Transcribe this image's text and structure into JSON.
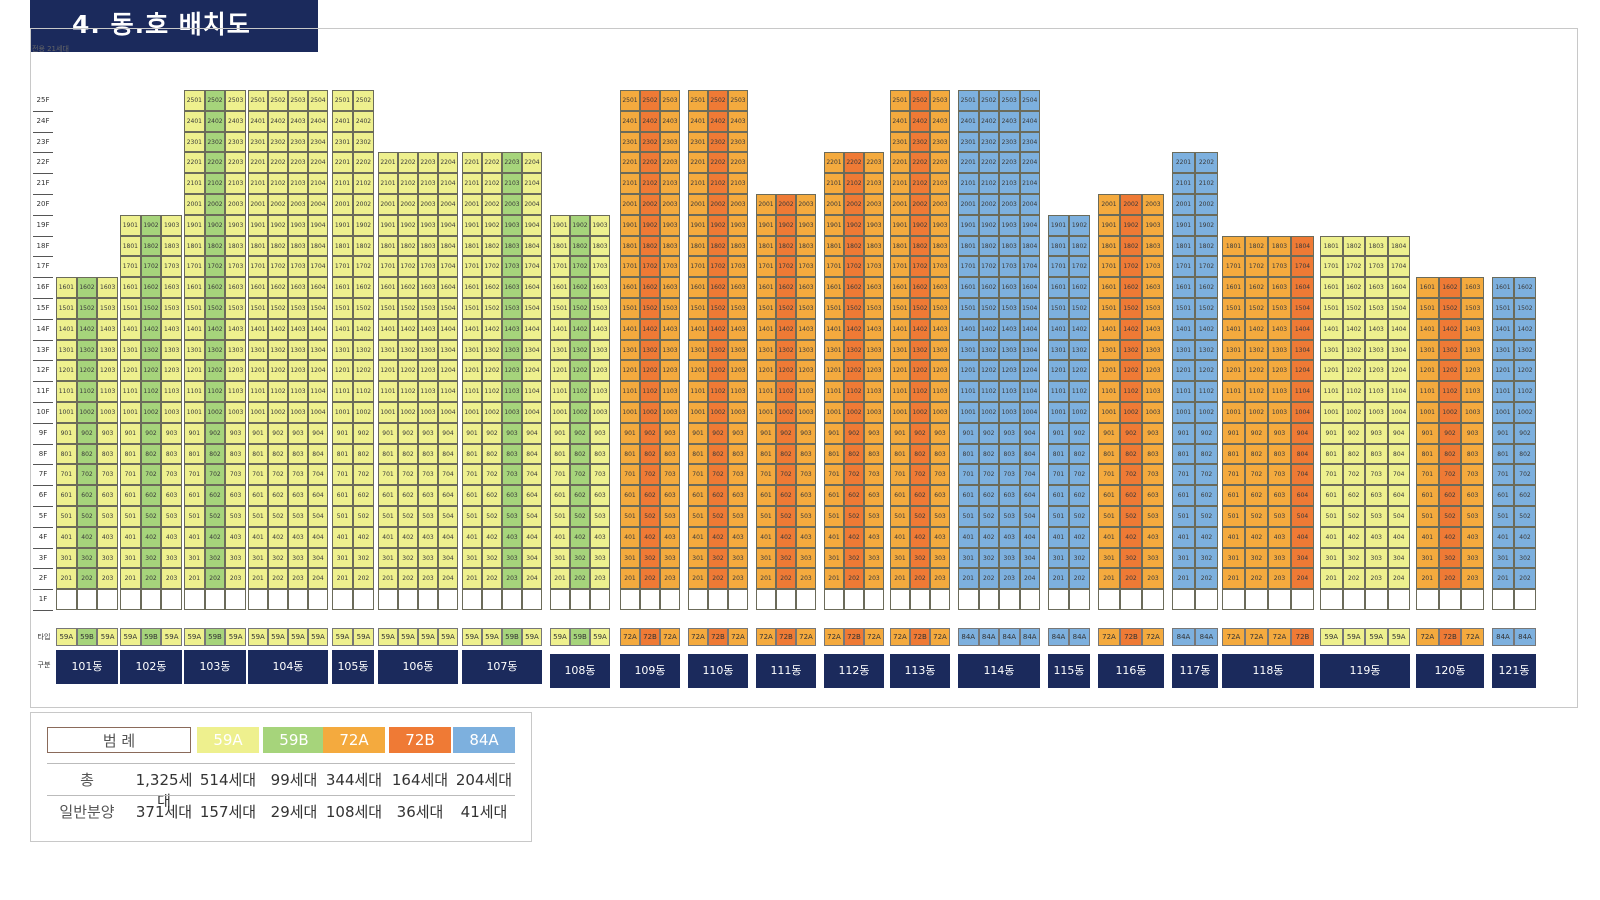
{
  "title": "4. 동.호 배치도",
  "caption": "전용 21세대",
  "colors": {
    "59A": "#eef08e",
    "59B": "#a6d47b",
    "72A": "#f4aa3e",
    "72B": "#ef7a35",
    "84A": "#7db0de"
  },
  "floors": [
    "25F",
    "24F",
    "23F",
    "22F",
    "21F",
    "20F",
    "19F",
    "18F",
    "17F",
    "16F",
    "15F",
    "14F",
    "13F",
    "12F",
    "11F",
    "10F",
    "9F",
    "8F",
    "7F",
    "6F",
    "5F",
    "4F",
    "3F",
    "2F",
    "1F"
  ],
  "row_labels": {
    "type": "타입",
    "building": "구분"
  },
  "buildings": [
    {
      "name": "101동",
      "x": 56,
      "w": 62,
      "types": [
        "59A",
        "59B",
        "59A"
      ],
      "top": 16,
      "bottom1": "",
      "lines": 3
    },
    {
      "name": "102동",
      "x": 120,
      "w": 62,
      "types": [
        "59A",
        "59B",
        "59A"
      ],
      "top": 19,
      "lines": 3
    },
    {
      "name": "103동",
      "x": 184,
      "w": 62,
      "types": [
        "59A",
        "59B",
        "59A"
      ],
      "top": 25,
      "lines": 3
    },
    {
      "name": "104동",
      "x": 248,
      "w": 80,
      "types": [
        "59A",
        "59A",
        "59A",
        "59A"
      ],
      "top": 25,
      "lines": 4
    },
    {
      "name": "105동",
      "x": 332,
      "w": 42,
      "types": [
        "59A",
        "59A"
      ],
      "top": 25,
      "lines": 2
    },
    {
      "name": "106동",
      "x": 378,
      "w": 80,
      "types": [
        "59A",
        "59A",
        "59A",
        "59A"
      ],
      "top": 22,
      "lines": 4
    },
    {
      "name": "107동",
      "x": 462,
      "w": 80,
      "types": [
        "59A",
        "59A",
        "59B",
        "59A"
      ],
      "top": 22,
      "lines": 4
    },
    {
      "name": "108동",
      "x": 550,
      "w": 60,
      "types": [
        "59A",
        "59B",
        "59A"
      ],
      "top": 19,
      "lines": 3
    },
    {
      "name": "109동",
      "x": 620,
      "w": 60,
      "types": [
        "72A",
        "72B",
        "72A"
      ],
      "top": 25,
      "lines": 3
    },
    {
      "name": "110동",
      "x": 688,
      "w": 60,
      "types": [
        "72A",
        "72B",
        "72A"
      ],
      "top": 25,
      "lines": 3
    },
    {
      "name": "111동",
      "x": 756,
      "w": 60,
      "types": [
        "72A",
        "72B",
        "72A"
      ],
      "top": 20,
      "lines": 3
    },
    {
      "name": "112동",
      "x": 824,
      "w": 60,
      "types": [
        "72A",
        "72B",
        "72A"
      ],
      "top": 22,
      "lines": 3
    },
    {
      "name": "113동",
      "x": 890,
      "w": 60,
      "types": [
        "72A",
        "72B",
        "72A"
      ],
      "top": 25,
      "lines": 3
    },
    {
      "name": "114동",
      "x": 958,
      "w": 82,
      "types": [
        "84A",
        "84A",
        "84A",
        "84A"
      ],
      "top": 25,
      "lines": 4
    },
    {
      "name": "115동",
      "x": 1048,
      "w": 42,
      "types": [
        "84A",
        "84A"
      ],
      "top": 19,
      "lines": 2
    },
    {
      "name": "116동",
      "x": 1098,
      "w": 66,
      "types": [
        "72A",
        "72B",
        "72A"
      ],
      "top": 20,
      "lines": 3
    },
    {
      "name": "117동",
      "x": 1172,
      "w": 46,
      "types": [
        "84A",
        "84A"
      ],
      "top": 22,
      "lines": 2
    },
    {
      "name": "118동",
      "x": 1222,
      "w": 92,
      "types": [
        "72A",
        "72A",
        "72A",
        "72B"
      ],
      "top": 18,
      "lines": 4
    },
    {
      "name": "119동",
      "x": 1320,
      "w": 90,
      "types": [
        "59A",
        "59A",
        "59A",
        "59A"
      ],
      "top": 18,
      "lines": 4
    },
    {
      "name": "120동",
      "x": 1416,
      "w": 68,
      "types": [
        "72A",
        "72B",
        "72A"
      ],
      "top": 16,
      "lines": 3
    },
    {
      "name": "121동",
      "x": 1492,
      "w": 44,
      "types": [
        "84A",
        "84A"
      ],
      "top": 16,
      "lines": 2
    }
  ],
  "legend": {
    "head_label": "범 례",
    "types": [
      "59A",
      "59B",
      "72A",
      "72B",
      "84A"
    ],
    "rows": [
      {
        "label": "총",
        "total": "1,325세대",
        "values": [
          "514세대",
          "99세대",
          "344세대",
          "164세대",
          "204세대"
        ]
      },
      {
        "label": "일반분양",
        "total": "371세대",
        "values": [
          "157세대",
          "29세대",
          "108세대",
          "36세대",
          "41세대"
        ]
      }
    ]
  }
}
